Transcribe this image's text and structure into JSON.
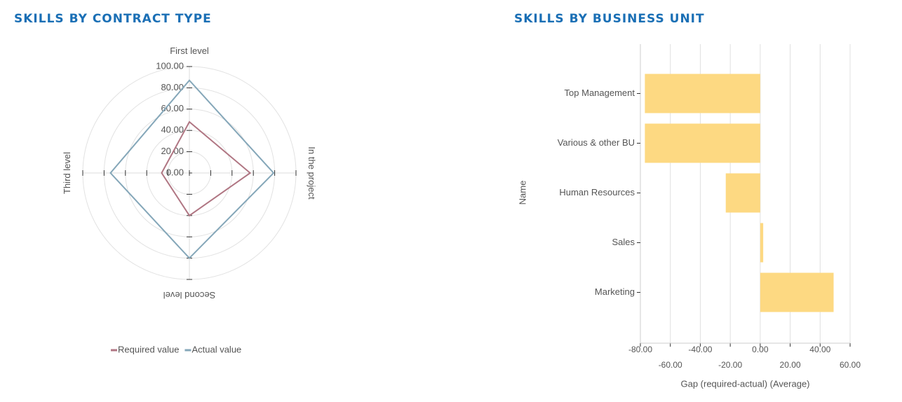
{
  "chart_data": [
    {
      "type": "radar",
      "title": "SKILLS BY CONTRACT TYPE",
      "categories": [
        "First level",
        "In the project",
        "Second level",
        "Third level"
      ],
      "series": [
        {
          "name": "Required value",
          "color": "#b07683",
          "values": [
            48,
            57,
            40,
            26
          ]
        },
        {
          "name": "Actual value",
          "color": "#85a7b9",
          "values": [
            87,
            79,
            80,
            74
          ]
        }
      ],
      "rlim": [
        0,
        100
      ],
      "rticks": [
        {
          "value": 0,
          "label": "0.00"
        },
        {
          "value": 20,
          "label": "20.00"
        },
        {
          "value": 40,
          "label": "40.00"
        },
        {
          "value": 60,
          "label": "60.00"
        },
        {
          "value": 80,
          "label": "80.00"
        },
        {
          "value": 100,
          "label": "100.00"
        }
      ],
      "legend": "bottom",
      "grid": true
    },
    {
      "type": "hbar",
      "title": "SKILLS BY BUSINESS UNIT",
      "categories": [
        "Top Management",
        "Various & other BU",
        "Human Resources",
        "Sales",
        "Marketing"
      ],
      "values": [
        -77,
        -77,
        -23,
        2,
        49
      ],
      "color": "#fdd982",
      "xlim": [
        -80,
        60
      ],
      "xticks": [
        {
          "value": -80,
          "label": "-80.00"
        },
        {
          "value": -60,
          "label": "-60.00"
        },
        {
          "value": -40,
          "label": "-40.00"
        },
        {
          "value": -20,
          "label": "-20.00"
        },
        {
          "value": 0,
          "label": "0.00"
        },
        {
          "value": 20,
          "label": "20.00"
        },
        {
          "value": 40,
          "label": "40.00"
        },
        {
          "value": 60,
          "label": "60.00"
        }
      ],
      "xlabel": "Gap (required-actual) (Average)",
      "ylabel": "Name",
      "grid": true
    }
  ]
}
